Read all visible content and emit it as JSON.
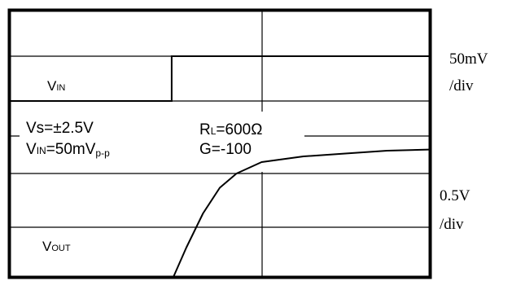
{
  "chart_data": {
    "type": "line",
    "title": "",
    "series": [
      {
        "trace": "input",
        "points": [
          [
            0,
            -1
          ],
          [
            3.85,
            -1
          ],
          [
            3.85,
            1
          ],
          [
            10,
            1
          ]
        ]
      },
      {
        "trace": "output",
        "points": [
          [
            3.9,
            0
          ],
          [
            4.2,
            0.5
          ],
          [
            4.6,
            1.1
          ],
          [
            5.0,
            1.55
          ],
          [
            5.4,
            1.8
          ],
          [
            6.0,
            2.0
          ],
          [
            7.0,
            2.1
          ],
          [
            8.0,
            2.15
          ],
          [
            9.0,
            2.2
          ],
          [
            10.0,
            2.22
          ]
        ]
      }
    ],
    "x_divisions": 10,
    "y_divisions": 8,
    "grid": true
  },
  "scale": {
    "ch1": "50mV",
    "ch1_unit": "/div",
    "ch2": "0.5V",
    "ch2_unit": "/div"
  },
  "labels": {
    "vin_main": "V",
    "vin_sub": "IN",
    "vout_main": "V",
    "vout_sub": "OUT",
    "vs": "Vs=±2.5V",
    "vin_cond_main": "V",
    "vin_cond_sub1": "IN",
    "vin_cond_mid": "=50mV",
    "vin_cond_sub2": "p-p",
    "rl_main": "R",
    "rl_sub": "L",
    "rl_val": "=600Ω",
    "gain": "G=-100"
  },
  "colors": {
    "trace": "#000000",
    "grid": "#000000",
    "background": "#ffffff"
  }
}
